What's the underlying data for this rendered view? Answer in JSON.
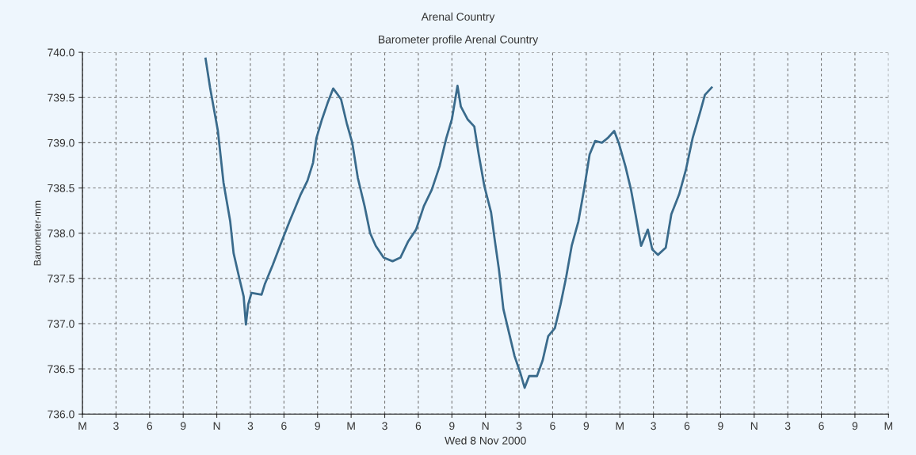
{
  "chart_data": {
    "type": "line",
    "title": "Arenal Country",
    "subtitle": "Barometer profile Arenal Country",
    "xlabel": "Wed 8 Nov 2000",
    "ylabel": "Barometer-mm",
    "xlim": [
      "2000-11-07T00:00",
      "2000-11-10T00:00"
    ],
    "ylim": [
      736.0,
      740.0
    ],
    "xticks": [
      {
        "value": "2000-11-07T00:00",
        "label": "M"
      },
      {
        "value": "2000-11-07T03:00",
        "label": "3"
      },
      {
        "value": "2000-11-07T06:00",
        "label": "6"
      },
      {
        "value": "2000-11-07T09:00",
        "label": "9"
      },
      {
        "value": "2000-11-07T12:00",
        "label": "N"
      },
      {
        "value": "2000-11-07T15:00",
        "label": "3"
      },
      {
        "value": "2000-11-07T18:00",
        "label": "6"
      },
      {
        "value": "2000-11-07T21:00",
        "label": "9"
      },
      {
        "value": "2000-11-08T00:00",
        "label": "M"
      },
      {
        "value": "2000-11-08T03:00",
        "label": "3"
      },
      {
        "value": "2000-11-08T06:00",
        "label": "6"
      },
      {
        "value": "2000-11-08T09:00",
        "label": "9"
      },
      {
        "value": "2000-11-08T12:00",
        "label": "N"
      },
      {
        "value": "2000-11-08T15:00",
        "label": "3"
      },
      {
        "value": "2000-11-08T18:00",
        "label": "6"
      },
      {
        "value": "2000-11-08T21:00",
        "label": "9"
      },
      {
        "value": "2000-11-09T00:00",
        "label": "M"
      },
      {
        "value": "2000-11-09T03:00",
        "label": "3"
      },
      {
        "value": "2000-11-09T06:00",
        "label": "6"
      },
      {
        "value": "2000-11-09T09:00",
        "label": "9"
      },
      {
        "value": "2000-11-09T12:00",
        "label": "N"
      },
      {
        "value": "2000-11-09T15:00",
        "label": "3"
      },
      {
        "value": "2000-11-09T18:00",
        "label": "6"
      },
      {
        "value": "2000-11-09T21:00",
        "label": "9"
      },
      {
        "value": "2000-11-10T00:00",
        "label": "M"
      }
    ],
    "yticks": [
      {
        "value": 736.0,
        "label": "736.0"
      },
      {
        "value": 736.5,
        "label": "736.5"
      },
      {
        "value": 737.0,
        "label": "737.0"
      },
      {
        "value": 737.5,
        "label": "737.5"
      },
      {
        "value": 738.0,
        "label": "738.0"
      },
      {
        "value": 738.5,
        "label": "738.5"
      },
      {
        "value": 739.0,
        "label": "739.0"
      },
      {
        "value": 739.5,
        "label": "739.5"
      },
      {
        "value": 740.0,
        "label": "740.0"
      }
    ],
    "grid": true,
    "legend": false,
    "marker": "none",
    "line_style": "solid",
    "series": [
      {
        "color": "#3a6b8c",
        "x": [
          "2000-11-07T11:00",
          "2000-11-07T11:24",
          "2000-11-07T12:06",
          "2000-11-07T12:36",
          "2000-11-07T13:12",
          "2000-11-07T13:30",
          "2000-11-07T14:00",
          "2000-11-07T14:24",
          "2000-11-07T14:36",
          "2000-11-07T14:48",
          "2000-11-07T15:06",
          "2000-11-07T16:00",
          "2000-11-07T16:18",
          "2000-11-07T17:00",
          "2000-11-07T17:48",
          "2000-11-07T18:30",
          "2000-11-07T19:00",
          "2000-11-07T19:30",
          "2000-11-07T20:06",
          "2000-11-07T20:36",
          "2000-11-07T20:54",
          "2000-11-07T21:24",
          "2000-11-07T21:54",
          "2000-11-07T22:24",
          "2000-11-07T22:42",
          "2000-11-07T23:06",
          "2000-11-07T23:36",
          "2000-11-08T00:06",
          "2000-11-08T00:36",
          "2000-11-08T01:12",
          "2000-11-08T01:42",
          "2000-11-08T02:12",
          "2000-11-08T02:54",
          "2000-11-08T03:42",
          "2000-11-08T04:24",
          "2000-11-08T05:06",
          "2000-11-08T05:48",
          "2000-11-08T06:30",
          "2000-11-08T07:12",
          "2000-11-08T07:54",
          "2000-11-08T08:30",
          "2000-11-08T09:00",
          "2000-11-08T09:30",
          "2000-11-08T09:48",
          "2000-11-08T10:24",
          "2000-11-08T11:00",
          "2000-11-08T11:24",
          "2000-11-08T11:54",
          "2000-11-08T12:30",
          "2000-11-08T12:48",
          "2000-11-08T13:12",
          "2000-11-08T13:36",
          "2000-11-08T14:06",
          "2000-11-08T14:36",
          "2000-11-08T15:06",
          "2000-11-08T15:30",
          "2000-11-08T15:54",
          "2000-11-08T16:36",
          "2000-11-08T17:06",
          "2000-11-08T17:36",
          "2000-11-08T18:12",
          "2000-11-08T18:42",
          "2000-11-08T19:12",
          "2000-11-08T19:42",
          "2000-11-08T20:18",
          "2000-11-08T20:48",
          "2000-11-08T21:18",
          "2000-11-08T21:48",
          "2000-11-08T22:24",
          "2000-11-08T22:54",
          "2000-11-08T23:30",
          "2000-11-08T23:54",
          "2000-11-09T00:30",
          "2000-11-09T01:00",
          "2000-11-09T01:24",
          "2000-11-09T01:54",
          "2000-11-09T02:30",
          "2000-11-09T02:54",
          "2000-11-09T03:24",
          "2000-11-09T04:06",
          "2000-11-09T04:36",
          "2000-11-09T05:18",
          "2000-11-09T05:54",
          "2000-11-09T06:30",
          "2000-11-09T07:12",
          "2000-11-09T07:36",
          "2000-11-09T08:12"
        ],
        "values": [
          739.93,
          739.61,
          739.13,
          738.56,
          738.13,
          737.78,
          737.51,
          737.3,
          736.99,
          737.21,
          737.34,
          737.32,
          737.44,
          737.65,
          737.91,
          738.13,
          738.28,
          738.43,
          738.58,
          738.78,
          739.05,
          739.26,
          739.44,
          739.6,
          739.55,
          739.48,
          739.22,
          739.0,
          738.61,
          738.3,
          738.0,
          737.86,
          737.73,
          737.69,
          737.73,
          737.91,
          738.04,
          738.3,
          738.48,
          738.74,
          739.05,
          739.26,
          739.63,
          739.4,
          739.26,
          739.18,
          738.87,
          738.52,
          738.23,
          737.95,
          737.6,
          737.16,
          736.9,
          736.64,
          736.46,
          736.29,
          736.42,
          736.42,
          736.59,
          736.86,
          736.95,
          737.21,
          737.51,
          737.86,
          738.13,
          738.48,
          738.87,
          739.02,
          739.0,
          739.05,
          739.13,
          739.0,
          738.74,
          738.48,
          738.21,
          737.86,
          738.04,
          737.82,
          737.76,
          737.84,
          738.21,
          738.43,
          738.7,
          739.05,
          739.35,
          739.53,
          739.61
        ]
      }
    ]
  }
}
